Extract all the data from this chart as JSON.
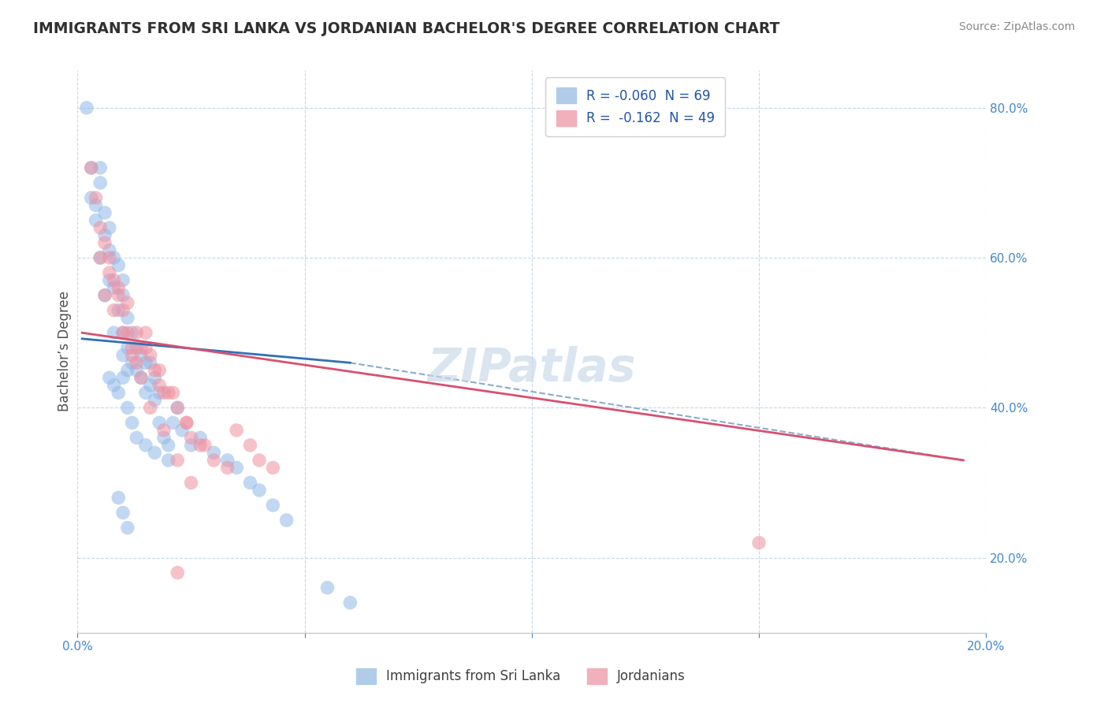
{
  "title": "IMMIGRANTS FROM SRI LANKA VS JORDANIAN BACHELOR'S DEGREE CORRELATION CHART",
  "source": "Source: ZipAtlas.com",
  "ylabel": "Bachelor’s Degree",
  "xlim": [
    0.0,
    0.2
  ],
  "ylim": [
    0.1,
    0.85
  ],
  "right_yticks": [
    0.2,
    0.4,
    0.6,
    0.8
  ],
  "right_yticklabels": [
    "20.0%",
    "40.0%",
    "60.0%",
    "80.0%"
  ],
  "xticks": [
    0.0,
    0.05,
    0.1,
    0.15,
    0.2
  ],
  "xticklabels": [
    "0.0%",
    "",
    "",
    "",
    "20.0%"
  ],
  "blue_color": "#90b8e8",
  "pink_color": "#f090a0",
  "background_color": "#ffffff",
  "grid_color": "#c8d8e8",
  "watermark": "ZIPatlas",
  "blue_scatter_x": [
    0.002,
    0.003,
    0.003,
    0.004,
    0.004,
    0.005,
    0.005,
    0.005,
    0.006,
    0.006,
    0.006,
    0.007,
    0.007,
    0.007,
    0.008,
    0.008,
    0.008,
    0.009,
    0.009,
    0.01,
    0.01,
    0.01,
    0.01,
    0.011,
    0.011,
    0.011,
    0.012,
    0.012,
    0.013,
    0.013,
    0.014,
    0.014,
    0.015,
    0.015,
    0.016,
    0.016,
    0.017,
    0.017,
    0.018,
    0.018,
    0.019,
    0.02,
    0.021,
    0.022,
    0.023,
    0.025,
    0.027,
    0.03,
    0.033,
    0.035,
    0.038,
    0.04,
    0.043,
    0.046,
    0.007,
    0.008,
    0.009,
    0.01,
    0.011,
    0.012,
    0.013,
    0.015,
    0.017,
    0.02,
    0.009,
    0.01,
    0.011,
    0.055,
    0.06
  ],
  "blue_scatter_y": [
    0.8,
    0.72,
    0.68,
    0.65,
    0.67,
    0.7,
    0.72,
    0.6,
    0.63,
    0.55,
    0.66,
    0.57,
    0.61,
    0.64,
    0.56,
    0.6,
    0.5,
    0.53,
    0.59,
    0.55,
    0.57,
    0.5,
    0.47,
    0.48,
    0.52,
    0.45,
    0.46,
    0.5,
    0.45,
    0.48,
    0.44,
    0.47,
    0.42,
    0.46,
    0.43,
    0.46,
    0.44,
    0.41,
    0.42,
    0.38,
    0.36,
    0.35,
    0.38,
    0.4,
    0.37,
    0.35,
    0.36,
    0.34,
    0.33,
    0.32,
    0.3,
    0.29,
    0.27,
    0.25,
    0.44,
    0.43,
    0.42,
    0.44,
    0.4,
    0.38,
    0.36,
    0.35,
    0.34,
    0.33,
    0.28,
    0.26,
    0.24,
    0.16,
    0.14
  ],
  "pink_scatter_x": [
    0.003,
    0.004,
    0.005,
    0.006,
    0.007,
    0.008,
    0.009,
    0.01,
    0.011,
    0.012,
    0.013,
    0.014,
    0.015,
    0.016,
    0.017,
    0.018,
    0.019,
    0.02,
    0.022,
    0.024,
    0.025,
    0.027,
    0.03,
    0.033,
    0.035,
    0.038,
    0.04,
    0.043,
    0.005,
    0.007,
    0.009,
    0.011,
    0.013,
    0.015,
    0.018,
    0.021,
    0.024,
    0.028,
    0.006,
    0.008,
    0.01,
    0.012,
    0.014,
    0.016,
    0.019,
    0.022,
    0.025,
    0.15,
    0.022
  ],
  "pink_scatter_y": [
    0.72,
    0.68,
    0.64,
    0.62,
    0.6,
    0.57,
    0.55,
    0.53,
    0.5,
    0.48,
    0.46,
    0.48,
    0.5,
    0.47,
    0.45,
    0.43,
    0.42,
    0.42,
    0.4,
    0.38,
    0.36,
    0.35,
    0.33,
    0.32,
    0.37,
    0.35,
    0.33,
    0.32,
    0.6,
    0.58,
    0.56,
    0.54,
    0.5,
    0.48,
    0.45,
    0.42,
    0.38,
    0.35,
    0.55,
    0.53,
    0.5,
    0.47,
    0.44,
    0.4,
    0.37,
    0.33,
    0.3,
    0.22,
    0.18
  ],
  "blue_trend_x": [
    0.001,
    0.06
  ],
  "blue_trend_y": [
    0.492,
    0.46
  ],
  "pink_trend_x": [
    0.001,
    0.195
  ],
  "pink_trend_y": [
    0.5,
    0.33
  ],
  "dashed_trend_x": [
    0.06,
    0.195
  ],
  "dashed_trend_y": [
    0.46,
    0.33
  ]
}
